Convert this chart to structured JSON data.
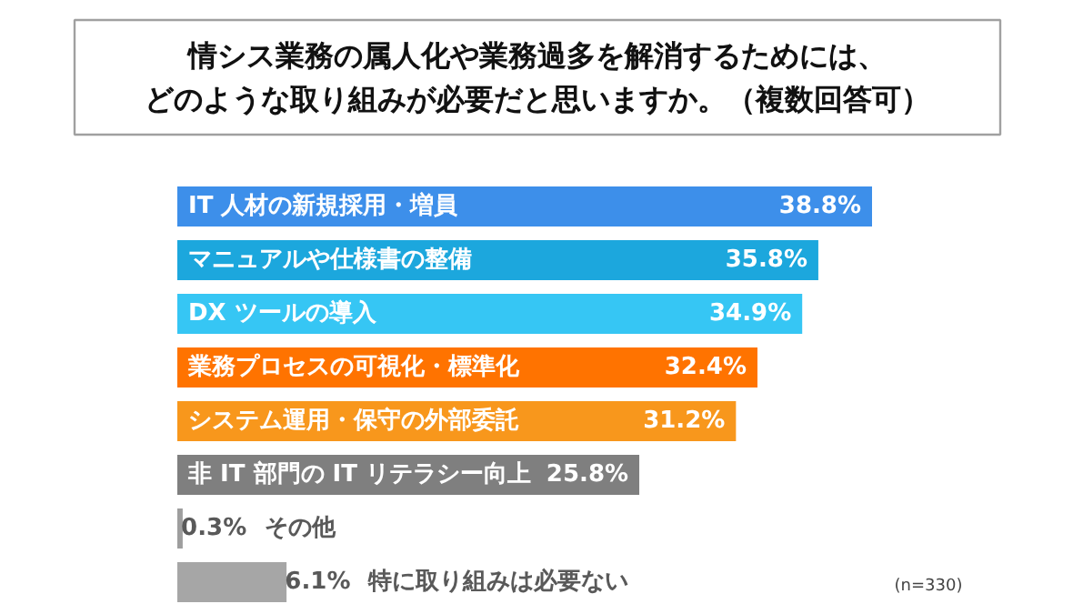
{
  "chart_data": {
    "type": "bar",
    "orientation": "horizontal",
    "title": "情シス業務の属人化や業務過多を解消するためには、どのような取り組みが必要だと思いますか。（複数回答可）",
    "categories": [
      "IT 人材の新規採用・増員",
      "マニュアルや仕様書の整備",
      "DX ツールの導入",
      "業務プロセスの可視化・標準化",
      "システム運用・保守の外部委託",
      "非 IT 部門の IT リテラシー向上",
      "その他",
      "特に取り組みは必要ない"
    ],
    "values": [
      38.8,
      35.8,
      34.9,
      32.4,
      31.2,
      25.8,
      0.3,
      6.1
    ],
    "value_labels": [
      "38.8%",
      "35.8%",
      "34.9%",
      "32.4%",
      "31.2%",
      "25.8%",
      "0.3%",
      "6.1%"
    ],
    "colors": [
      "#3d8fea",
      "#1ca7dd",
      "#36c6f4",
      "#ff7300",
      "#f8971c",
      "#7f7f7f",
      "#9e9e9e",
      "#a6a6a6"
    ],
    "data_labels": true,
    "annotations": [
      "(n=330)"
    ]
  }
}
